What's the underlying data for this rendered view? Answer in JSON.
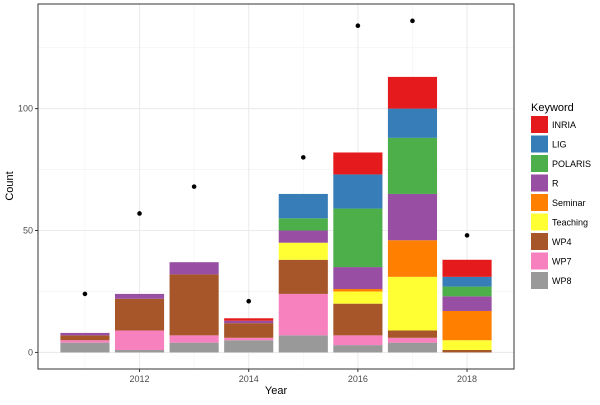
{
  "chart_data": {
    "type": "bar",
    "stacked": true,
    "xlabel": "Year",
    "ylabel": "Count",
    "xlim": [
      2010.14,
      2018.86
    ],
    "ylim": [
      -6.8,
      142.9
    ],
    "x_ticks": [
      2012,
      2014,
      2016,
      2018
    ],
    "y_ticks": [
      0,
      50,
      100
    ],
    "grid": true,
    "legend": {
      "title": "Keyword",
      "placement": "right"
    },
    "categories": [
      2011,
      2012,
      2013,
      2014,
      2015,
      2016,
      2017,
      2018
    ],
    "series": [
      {
        "name": "WP8",
        "color": "#999999",
        "values": [
          4,
          1,
          4,
          5,
          7,
          3,
          4,
          0
        ]
      },
      {
        "name": "WP7",
        "color": "#F781BF",
        "values": [
          1,
          8,
          3,
          1,
          17,
          4,
          2,
          0
        ]
      },
      {
        "name": "WP4",
        "color": "#A65628",
        "values": [
          2,
          13,
          25,
          6,
          14,
          13,
          3,
          1
        ]
      },
      {
        "name": "Teaching",
        "color": "#FFFF33",
        "values": [
          0,
          0,
          0,
          0,
          7,
          5,
          22,
          4
        ]
      },
      {
        "name": "Seminar",
        "color": "#FF7F00",
        "values": [
          0,
          0,
          0,
          0,
          0,
          1,
          15,
          12
        ]
      },
      {
        "name": "R",
        "color": "#984EA3",
        "values": [
          1,
          2,
          5,
          1,
          5,
          9,
          19,
          6
        ]
      },
      {
        "name": "POLARIS",
        "color": "#4DAF4A",
        "values": [
          0,
          0,
          0,
          0,
          5,
          24,
          23,
          4
        ]
      },
      {
        "name": "LIG",
        "color": "#377EB8",
        "values": [
          0,
          0,
          0,
          0,
          10,
          14,
          12,
          4
        ]
      },
      {
        "name": "INRIA",
        "color": "#E41A1C",
        "values": [
          0,
          0,
          0,
          1,
          0,
          9,
          13,
          7
        ]
      }
    ],
    "points": {
      "color": "#000000",
      "values": [
        24,
        57,
        68,
        21,
        80,
        134,
        136,
        48
      ]
    },
    "legend_order": [
      "INRIA",
      "LIG",
      "POLARIS",
      "R",
      "Seminar",
      "Teaching",
      "WP4",
      "WP7",
      "WP8"
    ]
  }
}
